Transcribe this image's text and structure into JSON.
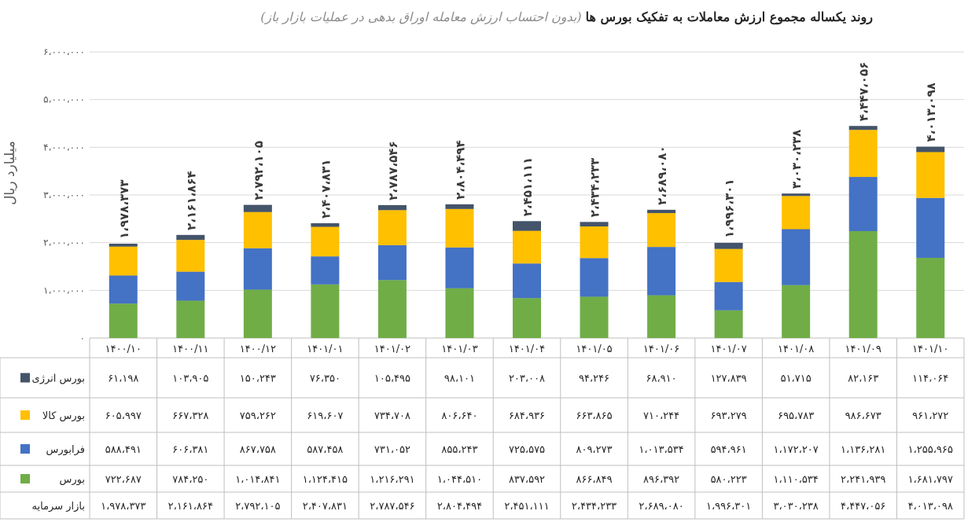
{
  "chart_data": {
    "type": "bar",
    "stacked": true,
    "title": "روند یکساله مجموع ارزش معاملات به تفکیک بورس ها",
    "subtitle": "(بدون احتساب ارزش معامله اوراق بدهی در عملیات بازار باز)",
    "ylabel": "میلیارد ریال",
    "xlabel": "",
    "ylim": [
      0,
      6000000
    ],
    "y_ticks": [
      "۰",
      "۱،۰۰۰،۰۰۰",
      "۲،۰۰۰،۰۰۰",
      "۳،۰۰۰،۰۰۰",
      "۴،۰۰۰،۰۰۰",
      "۵،۰۰۰،۰۰۰",
      "۶،۰۰۰،۰۰۰"
    ],
    "y_tick_values": [
      0,
      1000000,
      2000000,
      3000000,
      4000000,
      5000000,
      6000000
    ],
    "grid": true,
    "legend": "table-left",
    "categories": [
      "۱۴۰۰/۱۰",
      "۱۴۰۰/۱۱",
      "۱۴۰۰/۱۲",
      "۱۴۰۱/۰۱",
      "۱۴۰۱/۰۲",
      "۱۴۰۱/۰۳",
      "۱۴۰۱/۰۴",
      "۱۴۰۱/۰۵",
      "۱۴۰۱/۰۶",
      "۱۴۰۱/۰۷",
      "۱۴۰۱/۰۸",
      "۱۴۰۱/۰۹",
      "۱۴۰۱/۱۰"
    ],
    "series": [
      {
        "name": "بورس",
        "color": "#70ad47",
        "values": [
          722687,
          784250,
          1014841,
          1124415,
          1216291,
          1044510,
          837592,
          866849,
          896392,
          580223,
          1110534,
          2241939,
          1681797
        ],
        "labels": [
          "۷۲۲،۶۸۷",
          "۷۸۴،۲۵۰",
          "۱،۰۱۴،۸۴۱",
          "۱،۱۲۴،۴۱۵",
          "۱،۲۱۶،۲۹۱",
          "۱،۰۴۴،۵۱۰",
          "۸۳۷،۵۹۲",
          "۸۶۶،۸۴۹",
          "۸۹۶،۳۹۲",
          "۵۸۰،۲۲۳",
          "۱،۱۱۰،۵۳۴",
          "۲،۲۴۱،۹۳۹",
          "۱،۶۸۱،۷۹۷"
        ]
      },
      {
        "name": "فرابورس",
        "color": "#4472c4",
        "values": [
          588491,
          606381,
          867758,
          587458,
          731052,
          855243,
          725575,
          809273,
          1013534,
          594961,
          1172207,
          1136281,
          1255965
        ],
        "labels": [
          "۵۸۸،۴۹۱",
          "۶۰۶،۳۸۱",
          "۸۶۷،۷۵۸",
          "۵۸۷،۴۵۸",
          "۷۳۱،۰۵۲",
          "۸۵۵،۲۴۳",
          "۷۲۵،۵۷۵",
          "۸۰۹،۲۷۳",
          "۱،۰۱۳،۵۳۴",
          "۵۹۴،۹۶۱",
          "۱،۱۷۲،۲۰۷",
          "۱،۱۳۶،۲۸۱",
          "۱،۲۵۵،۹۶۵"
        ]
      },
      {
        "name": "بورس کالا",
        "color": "#ffc000",
        "values": [
          605997,
          667328,
          759262,
          619607,
          734708,
          806640,
          684936,
          663865,
          710244,
          693279,
          695783,
          986673,
          961272
        ],
        "labels": [
          "۶۰۵،۹۹۷",
          "۶۶۷،۳۲۸",
          "۷۵۹،۲۶۲",
          "۶۱۹،۶۰۷",
          "۷۳۴،۷۰۸",
          "۸۰۶،۶۴۰",
          "۶۸۴،۹۳۶",
          "۶۶۳،۸۶۵",
          "۷۱۰،۲۴۴",
          "۶۹۳،۲۷۹",
          "۶۹۵،۷۸۳",
          "۹۸۶،۶۷۳",
          "۹۶۱،۲۷۲"
        ]
      },
      {
        "name": "بورس انرژی",
        "color": "#44546a",
        "values": [
          61198,
          103905,
          150243,
          76350,
          105495,
          98101,
          203008,
          94246,
          68910,
          127839,
          51715,
          82163,
          114064
        ],
        "labels": [
          "۶۱،۱۹۸",
          "۱۰۳،۹۰۵",
          "۱۵۰،۲۴۳",
          "۷۶،۳۵۰",
          "۱۰۵،۴۹۵",
          "۹۸،۱۰۱",
          "۲۰۳،۰۰۸",
          "۹۴،۲۴۶",
          "۶۸،۹۱۰",
          "۱۲۷،۸۳۹",
          "۵۱،۷۱۵",
          "۸۲،۱۶۳",
          "۱۱۴،۰۶۴"
        ]
      }
    ],
    "totals": {
      "name": "بازار سرمایه",
      "values": [
        1978373,
        2161864,
        2792105,
        2407831,
        2787546,
        2804494,
        2451111,
        2434233,
        2689080,
        1996301,
        3030238,
        4447056,
        4013098
      ],
      "labels": [
        "۱،۹۷۸،۳۷۳",
        "۲،۱۶۱،۸۶۴",
        "۲،۷۹۲،۱۰۵",
        "۲،۴۰۷،۸۳۱",
        "۲،۷۸۷،۵۴۶",
        "۲،۸۰۴،۴۹۴",
        "۲،۴۵۱،۱۱۱",
        "۲،۴۳۴،۲۳۳",
        "۲،۶۸۹،۰۸۰",
        "۱،۹۹۶،۳۰۱",
        "۳،۰۳۰،۲۳۸",
        "۴،۴۴۷،۰۵۶",
        "۴،۰۱۳،۰۹۸"
      ]
    }
  }
}
